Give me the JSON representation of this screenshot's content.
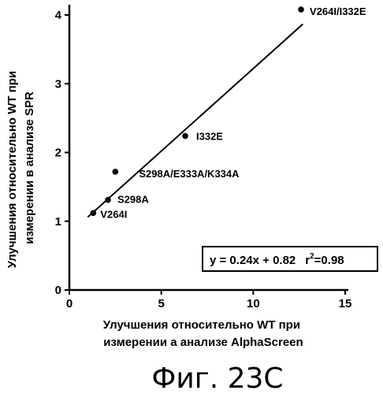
{
  "chart_data": {
    "type": "scatter",
    "title": "",
    "xlabel_lines": [
      "Улучшения относительно WT при",
      "измерении а анализе AlphaScreen"
    ],
    "ylabel_lines": [
      "Улучшения относительно WT при",
      "измерении в анализе SPR"
    ],
    "xlim": [
      0,
      15
    ],
    "ylim": [
      0,
      4.2
    ],
    "x_ticks": [
      0,
      5,
      10,
      15
    ],
    "y_ticks": [
      0,
      1,
      2,
      3,
      4
    ],
    "x_tick_labels": [
      "0",
      "5",
      "10",
      "15"
    ],
    "y_tick_labels": [
      "0",
      "1",
      "2",
      "3",
      "4"
    ],
    "grid": false,
    "points": [
      {
        "x": 1.3,
        "y": 1.12,
        "label": "V264I"
      },
      {
        "x": 2.1,
        "y": 1.31,
        "label": "S298A"
      },
      {
        "x": 2.5,
        "y": 1.72,
        "label": "S298A/E333A/K334A"
      },
      {
        "x": 6.3,
        "y": 2.24,
        "label": "I332E"
      },
      {
        "x": 12.6,
        "y": 4.08,
        "label": "V264I/I332E"
      }
    ],
    "fit_line": {
      "slope": 0.24,
      "intercept": 0.82,
      "x_range": [
        1.0,
        12.7
      ]
    },
    "equation_text": "y = 0.24x + 0.82",
    "r2_text": "r",
    "r2_sup": "2",
    "r2_value": "=0.98"
  },
  "caption": "Фиг. 23С",
  "colors": {
    "ink": "#000000",
    "background": "#ffffff"
  }
}
